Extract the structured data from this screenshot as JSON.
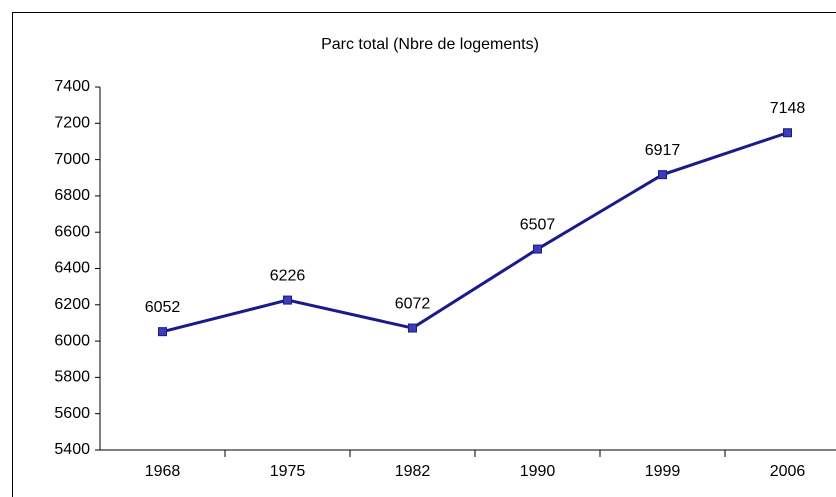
{
  "chart_data": {
    "type": "line",
    "title": "Parc total (Nbre de logements)",
    "categories": [
      "1968",
      "1975",
      "1982",
      "1990",
      "1999",
      "2006"
    ],
    "values": [
      6052,
      6226,
      6072,
      6507,
      6917,
      7148
    ],
    "color": "#1a1a8c",
    "marker_color": "#3c3cb4",
    "ylim": [
      5400,
      7400
    ],
    "yticks": [
      5400,
      5600,
      5800,
      6000,
      6200,
      6400,
      6600,
      6800,
      7000,
      7200,
      7400
    ],
    "grid": false
  }
}
